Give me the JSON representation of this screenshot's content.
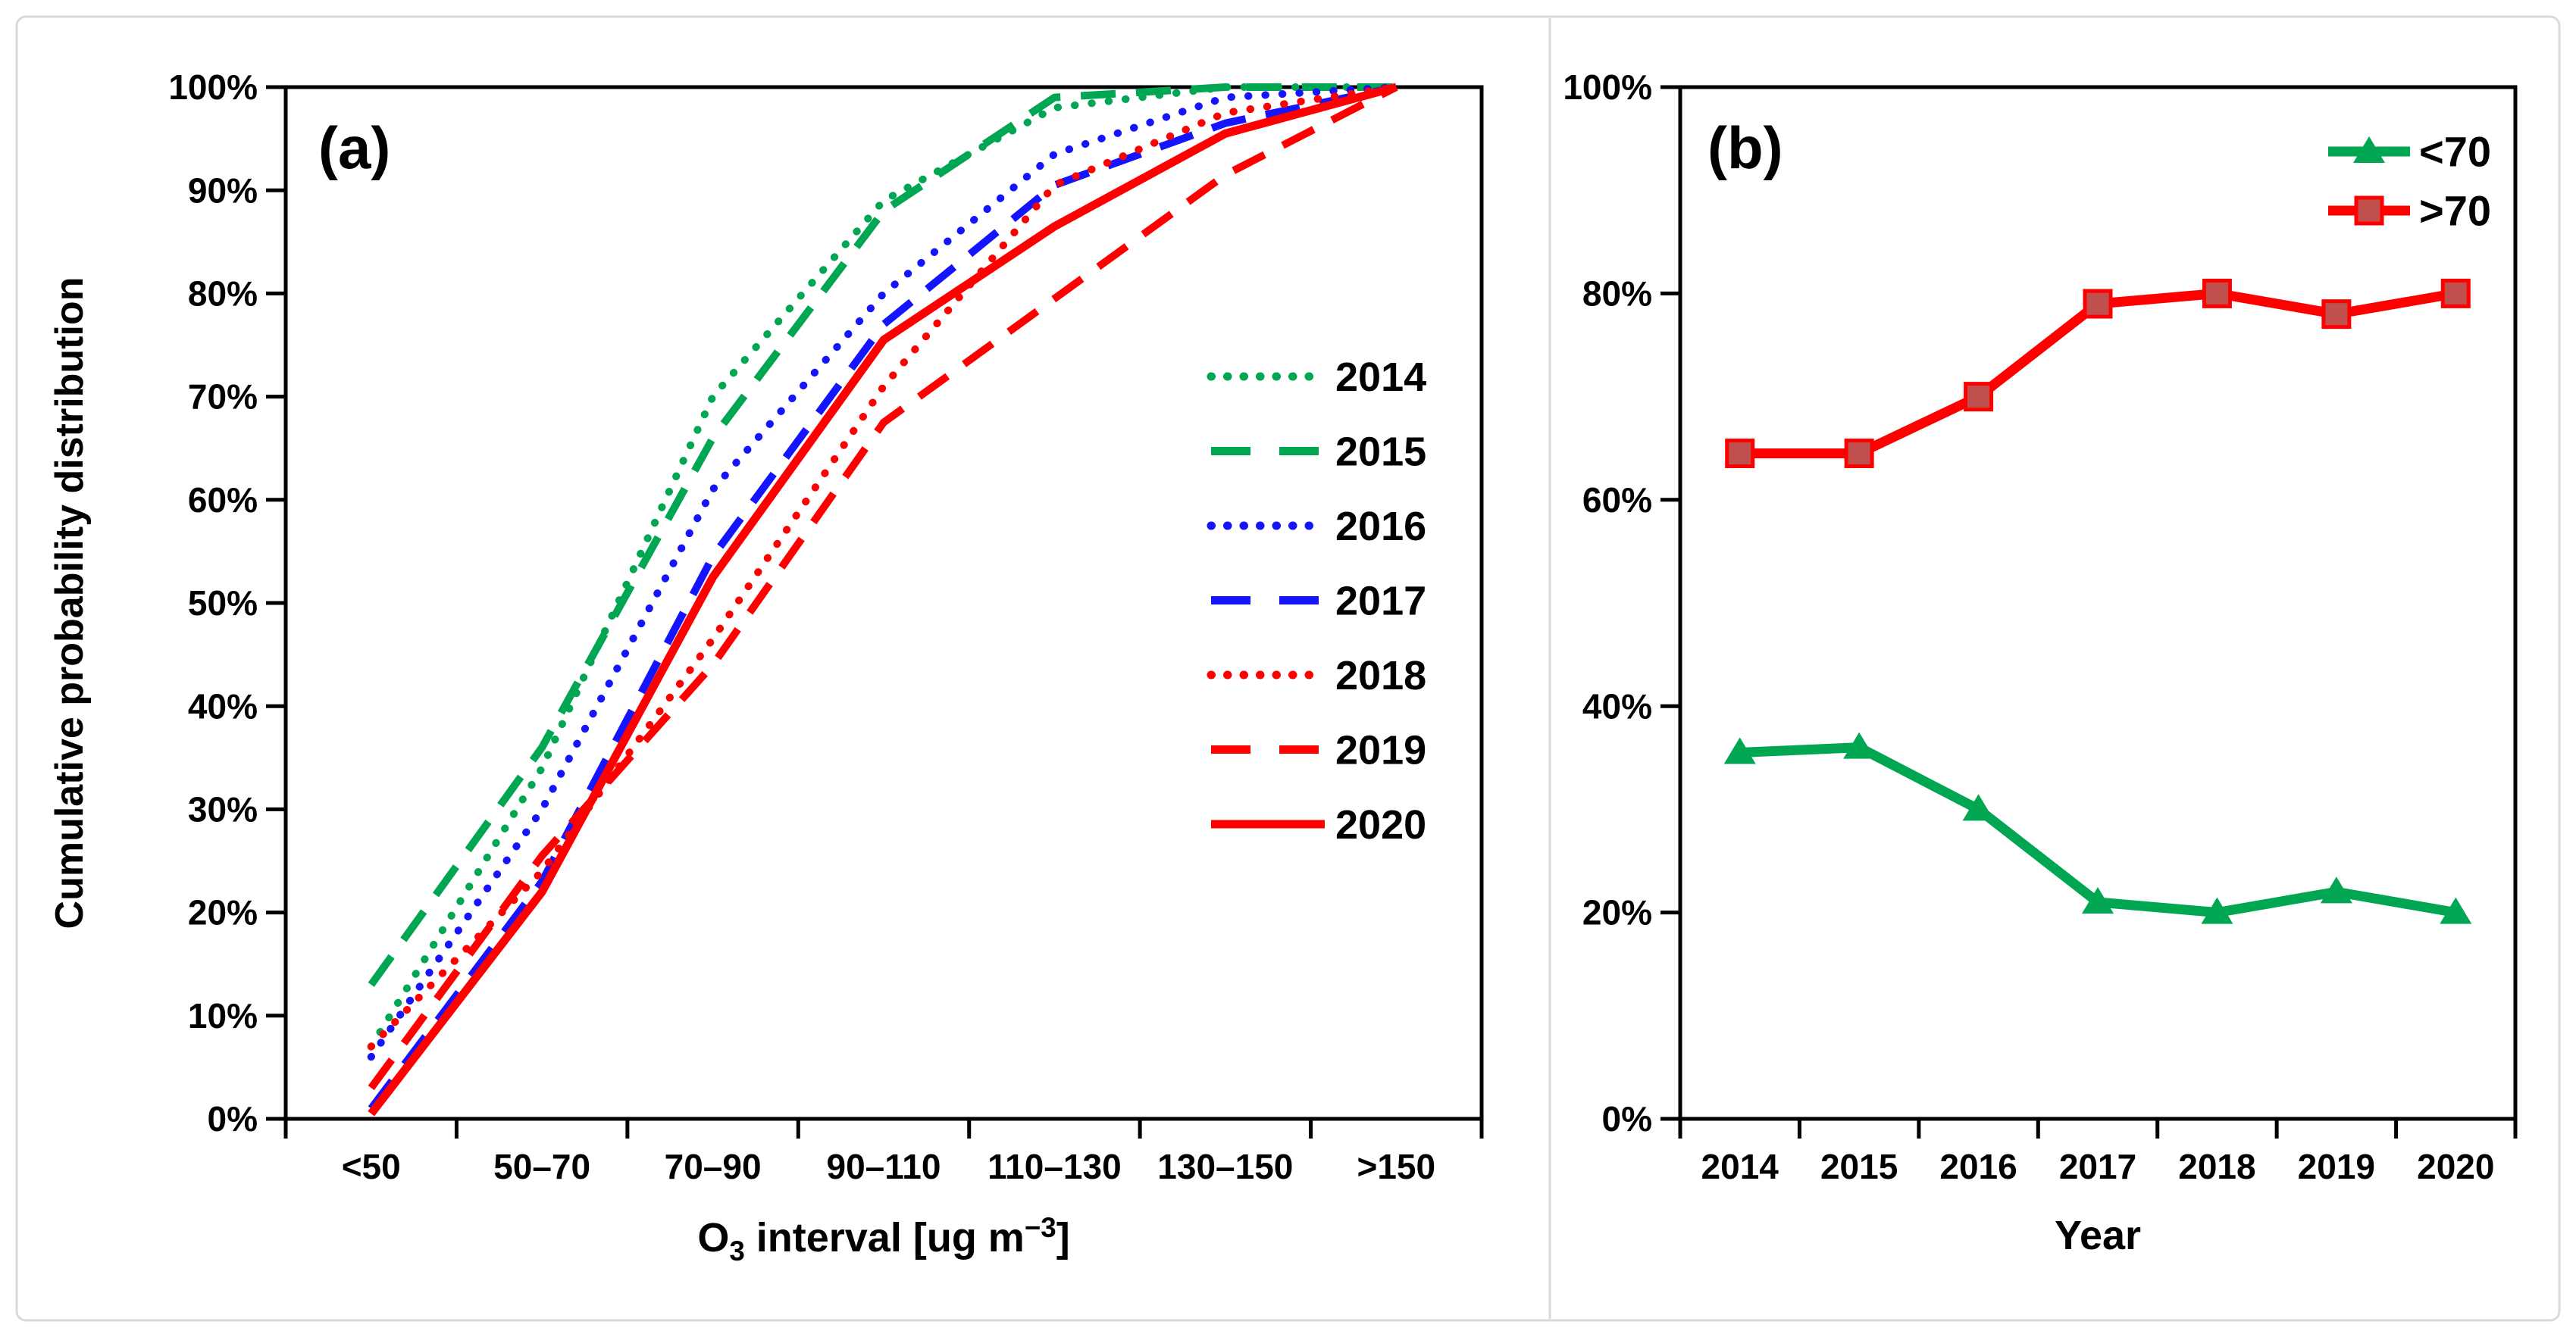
{
  "figure": {
    "background": "#ffffff",
    "border_color": "#d9d9d9",
    "axis_color": "#000000"
  },
  "chart_data": [
    {
      "type": "line",
      "panel_label": "(a)",
      "ylabel": "Cumulative probability distribution",
      "xlabel": "O3 interval [ug m-3]",
      "xlabel_rich": {
        "pre": "O",
        "sub": "3",
        "mid": " interval  [ug m",
        "sup": "−3",
        "post": "]"
      },
      "categories": [
        "<50",
        "50–70",
        "70–90",
        "90–110",
        "110–130",
        "130–150",
        ">150"
      ],
      "y_ticks": [
        "0%",
        "10%",
        "20%",
        "30%",
        "40%",
        "50%",
        "60%",
        "70%",
        "80%",
        "90%",
        "100%"
      ],
      "ylim": [
        0,
        100
      ],
      "grid": false,
      "legend_position": "inside-right",
      "series": [
        {
          "name": "2014",
          "color": "#00A651",
          "dash": "dotted",
          "values": [
            7,
            34,
            70,
            89,
            98,
            100,
            100
          ]
        },
        {
          "name": "2015",
          "color": "#00A651",
          "dash": "dashed",
          "values": [
            13,
            36,
            66,
            88,
            99,
            100,
            100
          ]
        },
        {
          "name": "2016",
          "color": "#1414FF",
          "dash": "dotted",
          "values": [
            6,
            30,
            61,
            80,
            93.5,
            99,
            100
          ]
        },
        {
          "name": "2017",
          "color": "#1414FF",
          "dash": "dashed",
          "values": [
            1,
            23,
            54.5,
            77,
            90.5,
            96.5,
            100
          ]
        },
        {
          "name": "2018",
          "color": "#FF0000",
          "dash": "dotted",
          "values": [
            7,
            24,
            46.5,
            71,
            90.5,
            97.5,
            100
          ]
        },
        {
          "name": "2019",
          "color": "#FF0000",
          "dash": "dashed",
          "values": [
            3,
            25.5,
            44,
            67.5,
            79.5,
            91.5,
            100
          ]
        },
        {
          "name": "2020",
          "color": "#FF0000",
          "dash": "solid",
          "values": [
            0.5,
            22,
            52.5,
            75.5,
            86.5,
            95.5,
            100
          ]
        }
      ]
    },
    {
      "type": "line",
      "panel_label": "(b)",
      "xlabel": "Year",
      "ylabel": "",
      "categories": [
        "2014",
        "2015",
        "2016",
        "2017",
        "2018",
        "2019",
        "2020"
      ],
      "y_ticks": [
        "0%",
        "20%",
        "40%",
        "60%",
        "80%",
        "100%"
      ],
      "ylim": [
        0,
        100
      ],
      "grid": false,
      "legend_position": "inside-top-right",
      "series": [
        {
          "name": "<70",
          "color": "#00A651",
          "dash": "solid",
          "marker": "triangle",
          "marker_fill": "#00A651",
          "values": [
            35.5,
            36,
            30,
            21,
            20,
            22,
            20
          ]
        },
        {
          "name": ">70",
          "color": "#FF0000",
          "dash": "solid",
          "marker": "square",
          "marker_fill": "#C0504D",
          "values": [
            64.5,
            64.5,
            70,
            79,
            80,
            78,
            80
          ]
        }
      ]
    }
  ]
}
